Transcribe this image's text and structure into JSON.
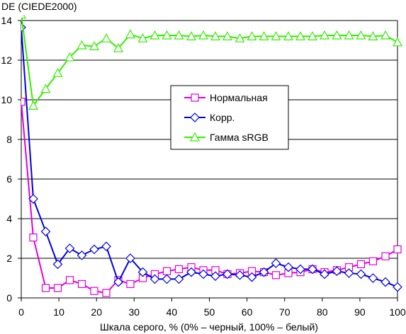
{
  "chart_data": {
    "type": "line",
    "title": "",
    "ylabel": "DE (CIEDE2000)",
    "xlabel": "Шкала серого, % (0% – черный, 100% – белый)",
    "xlim": [
      0,
      100
    ],
    "ylim": [
      0,
      14
    ],
    "xticks": [
      0,
      10,
      20,
      30,
      40,
      50,
      60,
      70,
      80,
      90,
      100
    ],
    "yticks": [
      0,
      2,
      4,
      6,
      8,
      10,
      12,
      14
    ],
    "grid": "horizontal",
    "legend_position": "center-right",
    "x": [
      0,
      3.2,
      6.5,
      9.7,
      12.9,
      16.1,
      19.4,
      22.6,
      25.8,
      29.0,
      32.3,
      35.5,
      38.7,
      41.9,
      45.2,
      48.4,
      51.6,
      54.8,
      58.1,
      61.3,
      64.5,
      67.7,
      71.0,
      74.2,
      77.4,
      80.6,
      83.9,
      87.1,
      90.3,
      93.5,
      96.8,
      100
    ],
    "series": [
      {
        "name": "Нормальная",
        "color": "#e000e0",
        "marker": "square",
        "values": [
          9.9,
          3.05,
          0.5,
          0.5,
          0.9,
          0.7,
          0.35,
          0.25,
          0.9,
          0.7,
          1.0,
          1.2,
          1.35,
          1.45,
          1.55,
          1.4,
          1.4,
          1.2,
          1.25,
          1.35,
          1.3,
          1.15,
          1.25,
          1.3,
          1.45,
          1.3,
          1.4,
          1.55,
          1.7,
          1.85,
          2.1,
          2.45
        ]
      },
      {
        "name": "Корр.",
        "color": "#0000e0",
        "marker": "diamond",
        "values": [
          13.65,
          5.0,
          3.35,
          1.7,
          2.5,
          2.15,
          2.45,
          2.6,
          0.8,
          2.0,
          1.3,
          0.95,
          0.95,
          0.95,
          1.3,
          1.2,
          1.1,
          1.2,
          1.15,
          1.05,
          1.3,
          1.75,
          1.55,
          1.45,
          1.45,
          1.2,
          1.35,
          1.25,
          1.2,
          1.0,
          0.8,
          0.55
        ]
      },
      {
        "name": "Гамма sRGB",
        "color": "#33ee00",
        "marker": "triangle",
        "values": [
          14.3,
          9.7,
          10.55,
          11.35,
          12.15,
          12.75,
          12.7,
          13.1,
          12.6,
          13.3,
          13.1,
          13.25,
          13.25,
          13.25,
          13.2,
          13.25,
          13.2,
          13.2,
          13.1,
          13.2,
          13.2,
          13.2,
          13.2,
          13.2,
          13.2,
          13.25,
          13.25,
          13.25,
          13.25,
          13.2,
          13.25,
          12.9
        ]
      }
    ]
  }
}
